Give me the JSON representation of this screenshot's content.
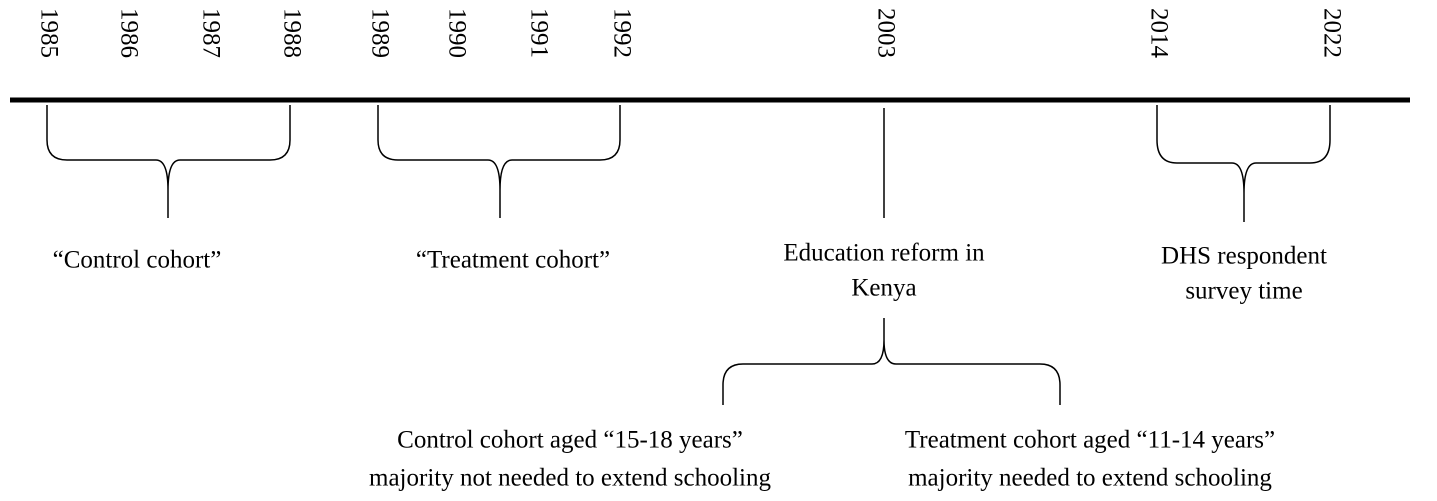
{
  "timeline": {
    "years": [
      "1985",
      "1986",
      "1987",
      "1988",
      "1989",
      "1990",
      "1991",
      "1992",
      "2003",
      "2014",
      "2022"
    ]
  },
  "labels": {
    "control_cohort": "“Control cohort”",
    "treatment_cohort": "“Treatment cohort”",
    "education_reform": [
      "Education reform in",
      "Kenya"
    ],
    "dhs_survey": [
      "DHS respondent",
      "survey time"
    ],
    "control_aged": [
      "Control cohort aged “15-18 years”",
      "majority not needed to extend schooling"
    ],
    "treatment_aged": [
      "Treatment cohort aged “11-14 years”",
      "majority needed to extend schooling"
    ]
  }
}
